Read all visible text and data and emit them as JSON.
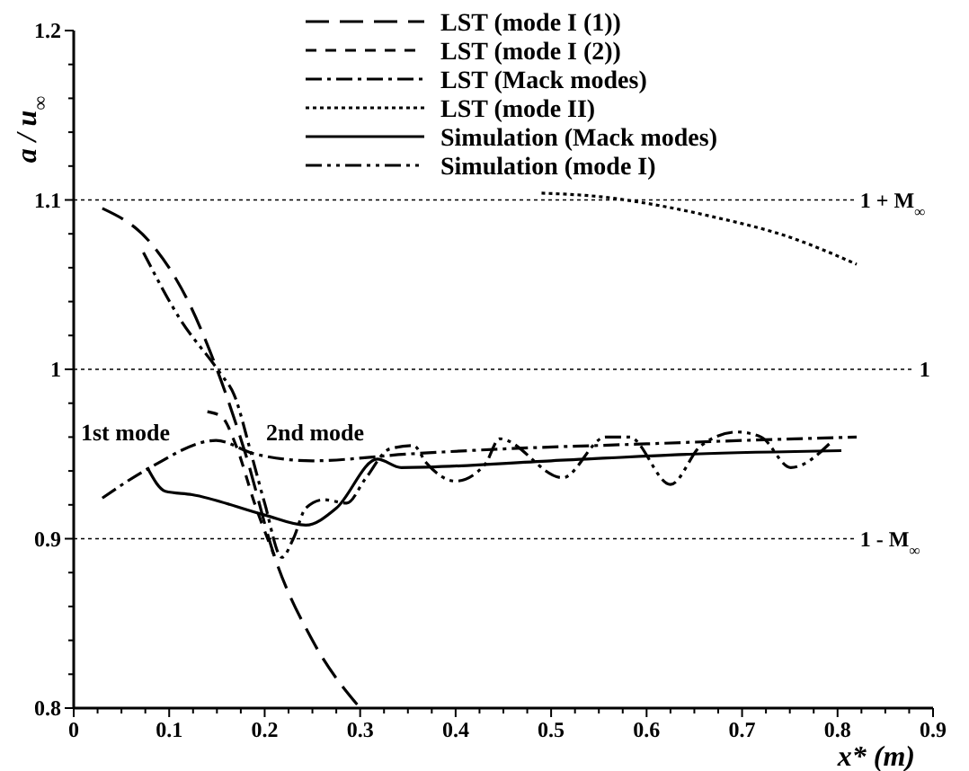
{
  "chart_data": {
    "type": "line",
    "xlabel": "x* (m)",
    "ylabel": "a / u$_{∞}$",
    "xlim": [
      0,
      0.9
    ],
    "ylim": [
      0.8,
      1.2
    ],
    "xticks": [
      0,
      {
        "value": 0.025,
        "label": null
      },
      {
        "value": 0.05,
        "label": null
      },
      {
        "value": 0.075,
        "label": null
      },
      0.1,
      {
        "value": 0.125,
        "label": null
      },
      {
        "value": 0.15,
        "label": null
      },
      {
        "value": 0.175,
        "label": null
      },
      0.2,
      {
        "value": 0.225,
        "label": null
      },
      {
        "value": 0.25,
        "label": null
      },
      {
        "value": 0.275,
        "label": null
      },
      0.3,
      {
        "value": 0.325,
        "label": null
      },
      {
        "value": 0.35,
        "label": null
      },
      {
        "value": 0.375,
        "label": null
      },
      0.4,
      {
        "value": 0.425,
        "label": null
      },
      {
        "value": 0.45,
        "label": null
      },
      {
        "value": 0.475,
        "label": null
      },
      0.5,
      {
        "value": 0.525,
        "label": null
      },
      {
        "value": 0.55,
        "label": null
      },
      {
        "value": 0.575,
        "label": null
      },
      0.6,
      {
        "value": 0.625,
        "label": null
      },
      {
        "value": 0.65,
        "label": null
      },
      {
        "value": 0.675,
        "label": null
      },
      0.7,
      {
        "value": 0.725,
        "label": null
      },
      {
        "value": 0.75,
        "label": null
      },
      {
        "value": 0.775,
        "label": null
      },
      0.8,
      {
        "value": 0.825,
        "label": null
      },
      {
        "value": 0.85,
        "label": null
      },
      {
        "value": 0.875,
        "label": null
      },
      0.9
    ],
    "yticks": [
      0.8,
      {
        "value": 0.82,
        "label": null
      },
      {
        "value": 0.84,
        "label": null
      },
      {
        "value": 0.86,
        "label": null
      },
      {
        "value": 0.88,
        "label": null
      },
      0.9,
      {
        "value": 0.92,
        "label": null
      },
      {
        "value": 0.94,
        "label": null
      },
      {
        "value": 0.96,
        "label": null
      },
      {
        "value": 0.98,
        "label": null
      },
      1,
      {
        "value": 1.02,
        "label": null
      },
      {
        "value": 1.04,
        "label": null
      },
      {
        "value": 1.06,
        "label": null
      },
      {
        "value": 1.08,
        "label": null
      },
      1.1,
      {
        "value": 1.12,
        "label": null
      },
      {
        "value": 1.14,
        "label": null
      },
      {
        "value": 1.16,
        "label": null
      },
      {
        "value": 1.18,
        "label": null
      },
      1.2
    ],
    "legend": "top",
    "marker": "none",
    "ref_lines": [
      {
        "axis": "y",
        "value": 1.1,
        "label": "1 + M$_{∞}$",
        "line_style": "dotted"
      },
      {
        "axis": "y",
        "value": 1,
        "label": "1",
        "line_style": "dotted"
      },
      {
        "axis": "y",
        "value": 0.9,
        "label": "1 - M$_{∞}$",
        "line_style": "dotted"
      }
    ],
    "annotations": [
      "1st mode",
      "2nd mode"
    ],
    "series": [
      {
        "name": "LST (mode I (1))",
        "color": "#000000",
        "line_style": "longdash",
        "x": [
          0.03,
          0.08,
          0.12,
          0.15,
          0.18,
          0.21,
          0.25,
          0.3
        ],
        "values": [
          1.095,
          1.075,
          1.04,
          1.0,
          0.95,
          0.89,
          0.84,
          0.8
        ]
      },
      {
        "name": "LST (mode I (2))",
        "color": "#000000",
        "line_style": "dashed",
        "x": [
          0.14,
          0.155,
          0.17,
          0.19,
          0.21
        ],
        "values": [
          0.975,
          0.972,
          0.955,
          0.92,
          0.89
        ]
      },
      {
        "name": "LST (Mack modes)",
        "color": "#000000",
        "line_style": "dashdot",
        "x": [
          0.03,
          0.08,
          0.149,
          0.19,
          0.25,
          0.35,
          0.45,
          0.6,
          0.7,
          0.82
        ],
        "values": [
          0.924,
          0.942,
          0.958,
          0.95,
          0.946,
          0.95,
          0.953,
          0.956,
          0.958,
          0.96
        ]
      },
      {
        "name": "LST (mode II)",
        "color": "#000000",
        "line_style": "dotted",
        "x": [
          0.49,
          0.55,
          0.6,
          0.67,
          0.75,
          0.82
        ],
        "values": [
          1.104,
          1.102,
          1.098,
          1.09,
          1.078,
          1.062
        ]
      },
      {
        "name": "Simulation (Mack modes)",
        "color": "#000000",
        "line_style": "solid",
        "x": [
          0.077,
          0.096,
          0.124,
          0.2,
          0.243,
          0.275,
          0.318,
          0.343,
          0.5,
          0.65,
          0.804
        ],
        "values": [
          0.942,
          0.928,
          0.926,
          0.914,
          0.908,
          0.918,
          0.947,
          0.942,
          0.946,
          0.95,
          0.952
        ]
      },
      {
        "name": "Simulation (mode I)",
        "color": "#000000",
        "line_style": "dashdotdot",
        "x": [
          0.073,
          0.111,
          0.153,
          0.168,
          0.186,
          0.2,
          0.218,
          0.23,
          0.243,
          0.262,
          0.286,
          0.305,
          0.331,
          0.356,
          0.369,
          0.4,
          0.431,
          0.446,
          0.512,
          0.557,
          0.582,
          0.625,
          0.657,
          0.695,
          0.72,
          0.751,
          0.795
        ],
        "values": [
          1.069,
          1.03,
          0.998,
          0.985,
          0.95,
          0.921,
          0.889,
          0.9,
          0.918,
          0.923,
          0.921,
          0.935,
          0.953,
          0.955,
          0.945,
          0.934,
          0.944,
          0.959,
          0.936,
          0.96,
          0.96,
          0.932,
          0.955,
          0.963,
          0.96,
          0.942,
          0.958
        ]
      }
    ]
  }
}
